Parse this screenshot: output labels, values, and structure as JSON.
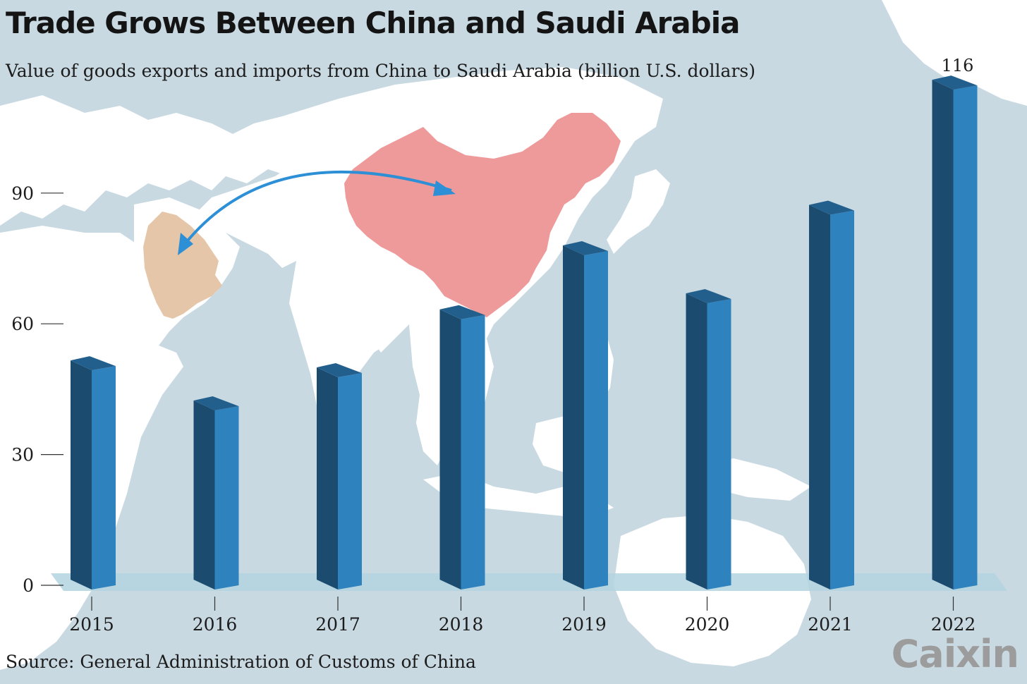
{
  "title": "Trade Grows Between China and Saudi Arabia",
  "subtitle": "Value of goods exports and imports from China to Saudi Arabia (billion U.S. dollars)",
  "source": "Source: General Administration of Customs of China",
  "brand": "Caixin",
  "colors": {
    "background": "#c8d9e2",
    "land": "#ffffff",
    "china": "#ee9a9a",
    "saudi_arabia": "#e5c6a8",
    "arrow": "#2d8fd5",
    "bar_front": "#2e82bd",
    "bar_side": "#1b4c70",
    "bar_top": "#235f8c",
    "floor": "#b3d3e0"
  },
  "chart_data": {
    "type": "bar",
    "title": "Trade Grows Between China and Saudi Arabia",
    "subtitle": "Value of goods exports and imports from China to Saudi Arabia (billion U.S. dollars)",
    "xlabel": "",
    "ylabel": "",
    "categories": [
      "2015",
      "2016",
      "2017",
      "2018",
      "2019",
      "2020",
      "2021",
      "2022"
    ],
    "values": [
      51.6,
      42.4,
      50.0,
      63.3,
      78.0,
      67.0,
      87.3,
      116
    ],
    "data_labels": [
      {
        "category": "2022",
        "label": "116"
      }
    ],
    "ylim": [
      0,
      120
    ],
    "yticks": [
      0,
      30,
      60,
      90
    ],
    "grid": false,
    "legend": "none"
  }
}
